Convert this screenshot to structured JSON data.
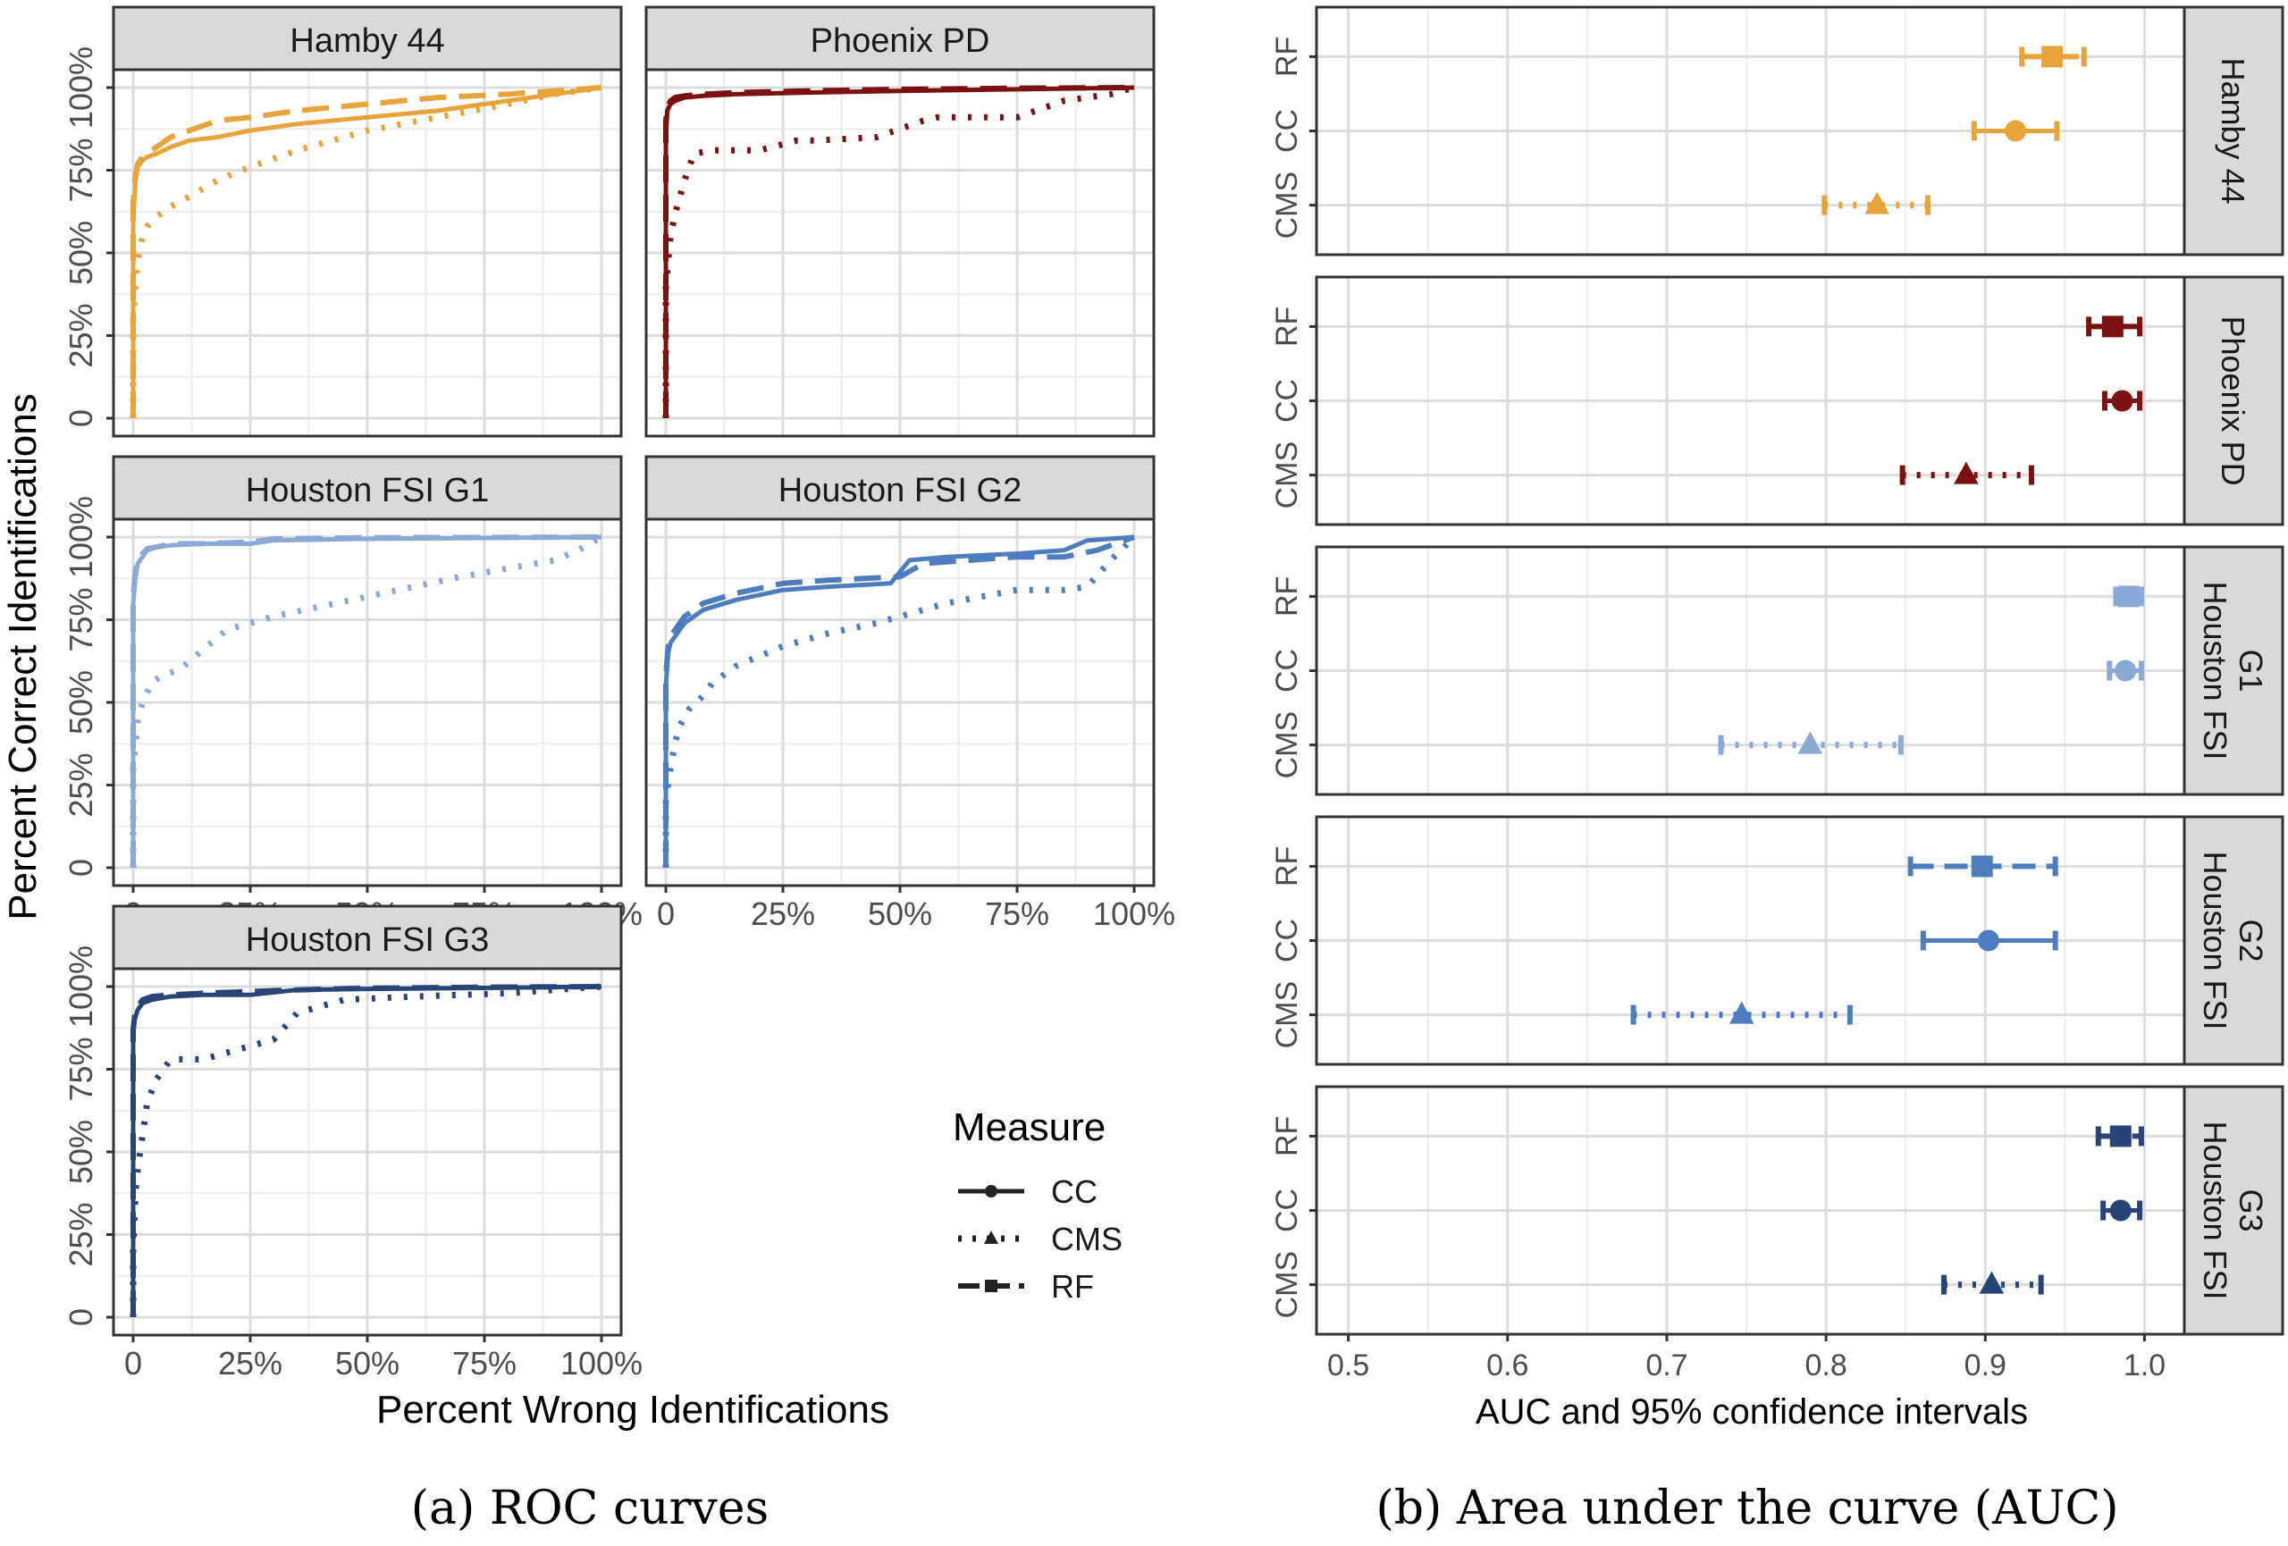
{
  "chart_data": [
    {
      "type": "line",
      "subtitle": "(a) ROC curves",
      "xlabel": "Percent Wrong Identifications",
      "ylabel": "Percent Correct Identifications",
      "xlim": [
        0,
        100
      ],
      "ylim": [
        0,
        100
      ],
      "x_ticks": [
        "0",
        "25%",
        "50%",
        "75%",
        "100%"
      ],
      "y_ticks": [
        "0",
        "25%",
        "50%",
        "75%",
        "100%"
      ],
      "grid": true,
      "legend": {
        "title": "Measure",
        "position": "bottom-right",
        "entries": [
          {
            "label": "CC",
            "linestyle": "solid",
            "marker": "circle"
          },
          {
            "label": "CMS",
            "linestyle": "dotted",
            "marker": "triangle"
          },
          {
            "label": "RF",
            "linestyle": "dashed",
            "marker": "square"
          }
        ]
      },
      "panels": [
        {
          "name": "Hamby 44",
          "color": "#E8A33B",
          "series": [
            {
              "name": "CC",
              "x": [
                0,
                0,
                0.5,
                1,
                2,
                3,
                5,
                8,
                12,
                18,
                25,
                35,
                50,
                65,
                80,
                90,
                100
              ],
              "y": [
                0,
                60,
                72,
                76,
                78,
                79,
                80,
                82,
                84,
                85,
                87,
                89,
                91,
                93,
                96,
                98,
                100
              ]
            },
            {
              "name": "CMS",
              "x": [
                0,
                0,
                0.5,
                1,
                2,
                3,
                5,
                8,
                12,
                18,
                25,
                35,
                50,
                65,
                80,
                90,
                100
              ],
              "y": [
                0,
                30,
                40,
                48,
                55,
                58,
                61,
                64,
                67,
                72,
                76,
                81,
                87,
                91,
                95,
                98,
                100
              ]
            },
            {
              "name": "RF",
              "x": [
                0,
                0,
                0.5,
                1,
                2,
                3,
                5,
                8,
                12,
                18,
                25,
                35,
                50,
                65,
                80,
                90,
                100
              ],
              "y": [
                0,
                65,
                74,
                77,
                79,
                80,
                82,
                85,
                87,
                90,
                91,
                93,
                95,
                97,
                98,
                99,
                100
              ]
            }
          ]
        },
        {
          "name": "Phoenix PD",
          "color": "#7B1113",
          "series": [
            {
              "name": "CC",
              "x": [
                0,
                0,
                0.3,
                1,
                2,
                4,
                8,
                15,
                30,
                50,
                75,
                100
              ],
              "y": [
                0,
                85,
                93,
                95,
                96,
                97,
                97.5,
                98,
                98.5,
                99,
                99.5,
                100
              ]
            },
            {
              "name": "CMS",
              "x": [
                0,
                0,
                1,
                2,
                4,
                6,
                10,
                20,
                28,
                32,
                45,
                55,
                58,
                75,
                85,
                95,
                100
              ],
              "y": [
                0,
                40,
                55,
                62,
                72,
                80,
                81,
                81,
                84,
                84,
                85,
                90,
                91,
                91,
                96,
                98,
                100
              ]
            },
            {
              "name": "RF",
              "x": [
                0,
                0,
                0.3,
                1,
                2,
                4,
                8,
                15,
                30,
                50,
                75,
                100
              ],
              "y": [
                0,
                90,
                94,
                96,
                97,
                97.5,
                98,
                98.5,
                99,
                99.5,
                99.8,
                100
              ]
            }
          ]
        },
        {
          "name": "Houston FSI G1",
          "color": "#8BA8D6",
          "series": [
            {
              "name": "CC",
              "x": [
                0,
                0,
                0.5,
                1,
                2,
                3,
                5,
                8,
                15,
                25,
                30,
                50,
                100
              ],
              "y": [
                0,
                80,
                88,
                92,
                94,
                96,
                97,
                97.5,
                98,
                98,
                99,
                99.5,
                100
              ]
            },
            {
              "name": "CMS",
              "x": [
                0,
                0,
                0.5,
                1,
                2,
                4,
                6,
                10,
                15,
                20,
                30,
                50,
                70,
                90,
                95,
                100
              ],
              "y": [
                0,
                30,
                37,
                45,
                50,
                56,
                58,
                60,
                66,
                72,
                76,
                82,
                88,
                93,
                96,
                100
              ]
            },
            {
              "name": "RF",
              "x": [
                0,
                0,
                0.5,
                1,
                2,
                3,
                5,
                8,
                15,
                25,
                30,
                50,
                100
              ],
              "y": [
                0,
                82,
                90,
                93,
                95,
                96.5,
                97,
                98,
                98,
                98.5,
                99.5,
                99.8,
                100
              ]
            }
          ]
        },
        {
          "name": "Houston FSI G2",
          "color": "#4E7DBF",
          "series": [
            {
              "name": "CC",
              "x": [
                0,
                0,
                0.5,
                1,
                2,
                4,
                8,
                15,
                25,
                35,
                48,
                52,
                60,
                75,
                85,
                90,
                100
              ],
              "y": [
                0,
                55,
                65,
                68,
                70,
                74,
                78,
                81,
                84,
                85,
                86,
                93,
                94,
                95,
                96,
                99,
                100
              ]
            },
            {
              "name": "CMS",
              "x": [
                0,
                0,
                1,
                2,
                3,
                5,
                8,
                10,
                15,
                25,
                35,
                45,
                60,
                75,
                85,
                90,
                95,
                100
              ],
              "y": [
                0,
                20,
                30,
                38,
                43,
                48,
                52,
                56,
                61,
                67,
                71,
                74,
                80,
                84,
                84,
                85,
                93,
                100
              ]
            },
            {
              "name": "RF",
              "x": [
                0,
                0,
                0.5,
                1,
                2,
                4,
                8,
                15,
                25,
                35,
                50,
                55,
                65,
                75,
                85,
                92,
                100
              ],
              "y": [
                0,
                58,
                67,
                70,
                72,
                76,
                80,
                83,
                86,
                87,
                88,
                92,
                93,
                94,
                94,
                96,
                100
              ]
            }
          ]
        },
        {
          "name": "Houston FSI G3",
          "color": "#2A4478",
          "series": [
            {
              "name": "CC",
              "x": [
                0,
                0,
                0.3,
                1,
                2,
                4,
                8,
                15,
                25,
                35,
                50,
                75,
                100
              ],
              "y": [
                0,
                85,
                90,
                93,
                95,
                96,
                97,
                97.5,
                97.5,
                99,
                99.3,
                99.6,
                100
              ]
            },
            {
              "name": "CMS",
              "x": [
                0,
                0,
                0.5,
                1,
                2,
                3,
                5,
                8,
                15,
                20,
                30,
                35,
                45,
                60,
                80,
                100
              ],
              "y": [
                0,
                20,
                38,
                45,
                55,
                65,
                72,
                78,
                78,
                80,
                84,
                92,
                96,
                97,
                98,
                100
              ]
            },
            {
              "name": "RF",
              "x": [
                0,
                0,
                0.3,
                1,
                2,
                4,
                8,
                15,
                25,
                35,
                50,
                75,
                100
              ],
              "y": [
                0,
                87,
                91,
                94,
                96,
                97,
                97.5,
                98,
                98.5,
                99,
                99.5,
                99.8,
                100
              ]
            }
          ]
        }
      ]
    },
    {
      "type": "scatter",
      "subtitle": "(b) Area under the curve (AUC)",
      "xlabel": "AUC and 95% confidence intervals",
      "xlim": [
        0.48,
        1.025
      ],
      "x_ticks": [
        "0.5",
        "0.6",
        "0.7",
        "0.8",
        "0.9",
        "1.0"
      ],
      "x_tick_values": [
        0.5,
        0.6,
        0.7,
        0.8,
        0.9,
        1.0
      ],
      "y_categories": [
        "RF",
        "CC",
        "CMS"
      ],
      "grid": true,
      "panels": [
        {
          "name": "Hamby 44",
          "strip_lines": [
            "Hamby 44"
          ],
          "color": "#E8A33B",
          "points": [
            {
              "measure": "RF",
              "auc": 0.942,
              "lo": 0.923,
              "hi": 0.962
            },
            {
              "measure": "CC",
              "auc": 0.919,
              "lo": 0.893,
              "hi": 0.945
            },
            {
              "measure": "CMS",
              "auc": 0.832,
              "lo": 0.799,
              "hi": 0.864
            }
          ]
        },
        {
          "name": "Phoenix PD",
          "strip_lines": [
            "Phoenix PD"
          ],
          "color": "#7B1113",
          "points": [
            {
              "measure": "RF",
              "auc": 0.98,
              "lo": 0.965,
              "hi": 0.997
            },
            {
              "measure": "CC",
              "auc": 0.986,
              "lo": 0.975,
              "hi": 0.997
            },
            {
              "measure": "CMS",
              "auc": 0.888,
              "lo": 0.848,
              "hi": 0.929
            }
          ]
        },
        {
          "name": "Houston FSI G1",
          "strip_lines": [
            "Houston FSI",
            "G1"
          ],
          "color": "#8BA8D6",
          "points": [
            {
              "measure": "RF",
              "auc": 0.99,
              "lo": 0.982,
              "hi": 0.998
            },
            {
              "measure": "CC",
              "auc": 0.988,
              "lo": 0.978,
              "hi": 0.998
            },
            {
              "measure": "CMS",
              "auc": 0.79,
              "lo": 0.734,
              "hi": 0.847
            }
          ]
        },
        {
          "name": "Houston FSI G2",
          "strip_lines": [
            "Houston FSI",
            "G2"
          ],
          "color": "#4E7DBF",
          "points": [
            {
              "measure": "RF",
              "auc": 0.898,
              "lo": 0.853,
              "hi": 0.944
            },
            {
              "measure": "CC",
              "auc": 0.902,
              "lo": 0.861,
              "hi": 0.944
            },
            {
              "measure": "CMS",
              "auc": 0.747,
              "lo": 0.679,
              "hi": 0.815
            }
          ]
        },
        {
          "name": "Houston FSI G3",
          "strip_lines": [
            "Houston FSI",
            "G3"
          ],
          "color": "#2A4478",
          "points": [
            {
              "measure": "RF",
              "auc": 0.985,
              "lo": 0.971,
              "hi": 0.998
            },
            {
              "measure": "CC",
              "auc": 0.985,
              "lo": 0.974,
              "hi": 0.997
            },
            {
              "measure": "CMS",
              "auc": 0.904,
              "lo": 0.874,
              "hi": 0.935
            }
          ]
        }
      ]
    }
  ]
}
